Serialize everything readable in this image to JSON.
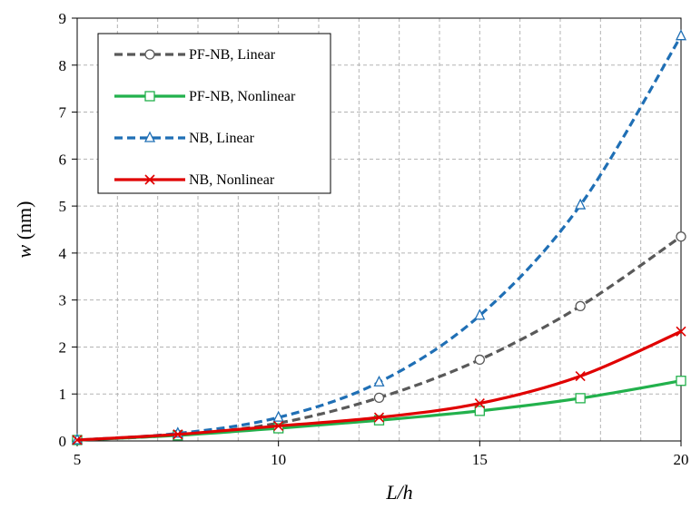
{
  "chart_data": {
    "type": "line",
    "title": "",
    "xlabel": "L/h",
    "ylabel_symbol": "w",
    "ylabel_unit": "(nm)",
    "xlim": [
      5,
      20
    ],
    "ylim": [
      0,
      9
    ],
    "xticks": [
      5,
      10,
      15,
      20
    ],
    "yticks": [
      0,
      1,
      2,
      3,
      4,
      5,
      6,
      7,
      8,
      9
    ],
    "grid": true,
    "legend_position": "top-left",
    "series": [
      {
        "name": "PF-NB, Linear",
        "color": "#595959",
        "dash": "dashed",
        "marker": "circle",
        "x": [
          5,
          7.5,
          10,
          12.5,
          15,
          17.5,
          20
        ],
        "y": [
          0.02,
          0.13,
          0.38,
          0.92,
          1.73,
          2.87,
          4.35
        ]
      },
      {
        "name": "PF-NB, Nonlinear",
        "color": "#22b14c",
        "dash": "solid",
        "marker": "square",
        "x": [
          5,
          7.5,
          10,
          12.5,
          15,
          17.5,
          20
        ],
        "y": [
          0.02,
          0.12,
          0.27,
          0.44,
          0.64,
          0.91,
          1.28
        ]
      },
      {
        "name": "NB, Linear",
        "color": "#1f6fb5",
        "dash": "dashed",
        "marker": "triangle",
        "x": [
          5,
          7.5,
          10,
          12.5,
          15,
          17.5,
          20
        ],
        "y": [
          0.02,
          0.16,
          0.5,
          1.25,
          2.67,
          5.02,
          8.62
        ]
      },
      {
        "name": "NB, Nonlinear",
        "color": "#e00000",
        "dash": "solid",
        "marker": "x",
        "x": [
          5,
          7.5,
          10,
          12.5,
          15,
          17.5,
          20
        ],
        "y": [
          0.02,
          0.14,
          0.32,
          0.5,
          0.8,
          1.38,
          2.33
        ]
      }
    ]
  }
}
